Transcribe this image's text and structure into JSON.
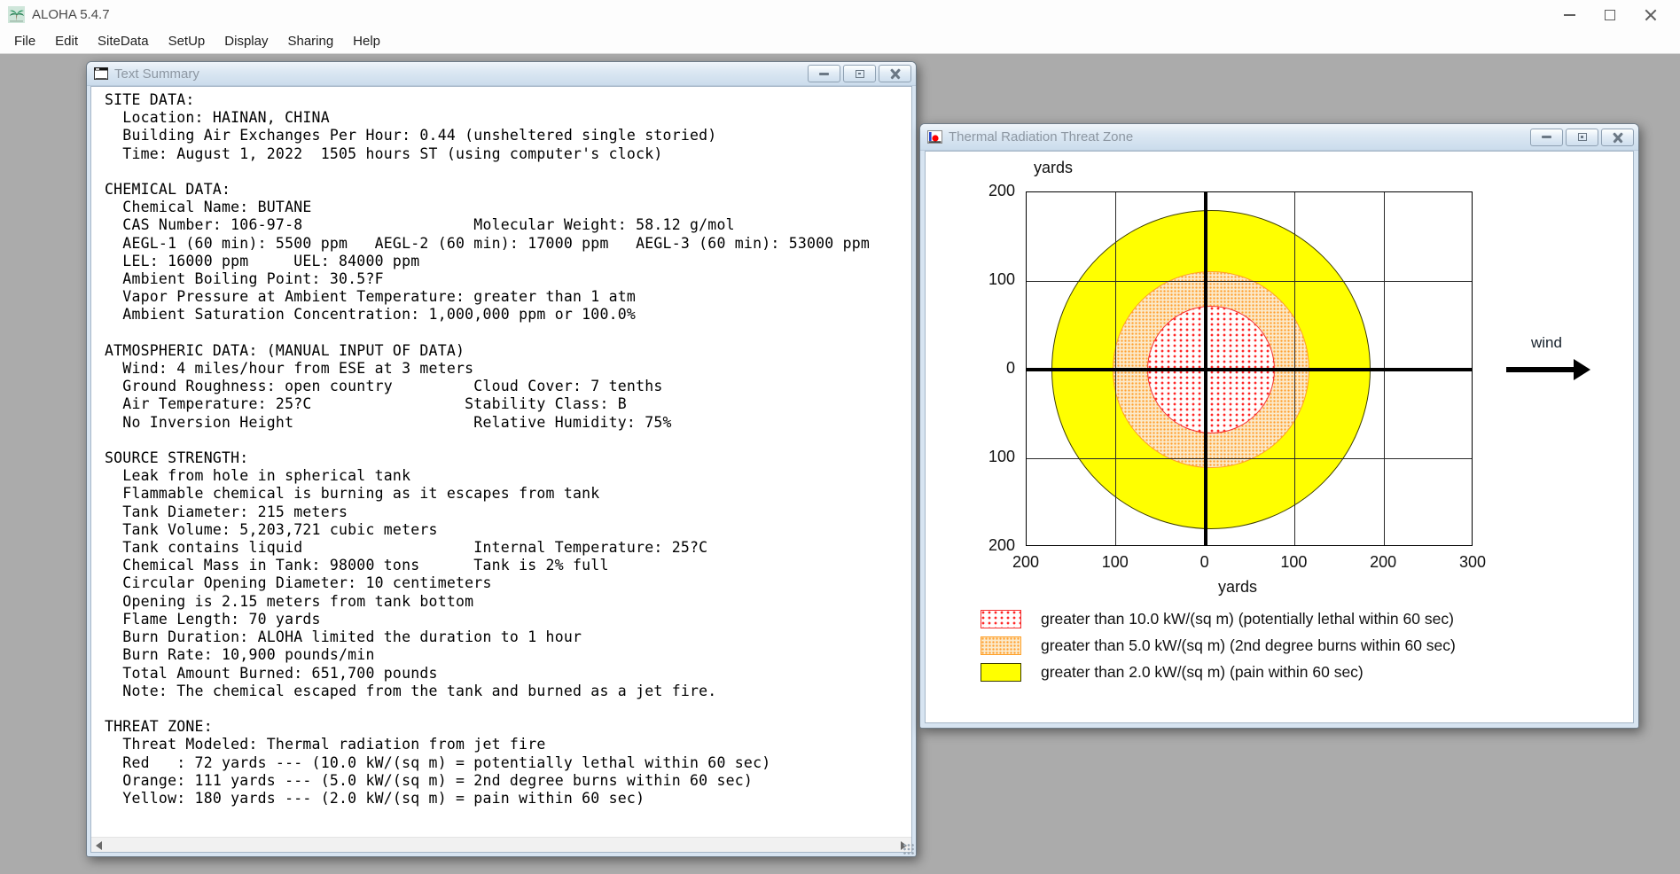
{
  "app": {
    "title": "ALOHA 5.4.7",
    "menu_items": [
      "File",
      "Edit",
      "SiteData",
      "SetUp",
      "Display",
      "Sharing",
      "Help"
    ]
  },
  "text_summary_window": {
    "title": "Text Summary",
    "lines": [
      "SITE DATA:",
      "  Location: HAINAN, CHINA",
      "  Building Air Exchanges Per Hour: 0.44 (unsheltered single storied)",
      "  Time: August 1, 2022  1505 hours ST (using computer's clock)",
      "",
      "CHEMICAL DATA:",
      "  Chemical Name: BUTANE",
      "  CAS Number: 106-97-8                   Molecular Weight: 58.12 g/mol",
      "  AEGL-1 (60 min): 5500 ppm   AEGL-2 (60 min): 17000 ppm   AEGL-3 (60 min): 53000 ppm",
      "  LEL: 16000 ppm     UEL: 84000 ppm",
      "  Ambient Boiling Point: 30.5?F",
      "  Vapor Pressure at Ambient Temperature: greater than 1 atm",
      "  Ambient Saturation Concentration: 1,000,000 ppm or 100.0%",
      "",
      "ATMOSPHERIC DATA: (MANUAL INPUT OF DATA)",
      "  Wind: 4 miles/hour from ESE at 3 meters",
      "  Ground Roughness: open country         Cloud Cover: 7 tenths",
      "  Air Temperature: 25?C                 Stability Class: B",
      "  No Inversion Height                    Relative Humidity: 75%",
      "",
      "SOURCE STRENGTH:",
      "  Leak from hole in spherical tank",
      "  Flammable chemical is burning as it escapes from tank",
      "  Tank Diameter: 215 meters",
      "  Tank Volume: 5,203,721 cubic meters",
      "  Tank contains liquid                   Internal Temperature: 25?C",
      "  Chemical Mass in Tank: 98000 tons      Tank is 2% full",
      "  Circular Opening Diameter: 10 centimeters",
      "  Opening is 2.15 meters from tank bottom",
      "  Flame Length: 70 yards",
      "  Burn Duration: ALOHA limited the duration to 1 hour",
      "  Burn Rate: 10,900 pounds/min",
      "  Total Amount Burned: 651,700 pounds",
      "  Note: The chemical escaped from the tank and burned as a jet fire.",
      "",
      "THREAT ZONE:",
      "  Threat Modeled: Thermal radiation from jet fire",
      "  Red   : 72 yards --- (10.0 kW/(sq m) = potentially lethal within 60 sec)",
      "  Orange: 111 yards --- (5.0 kW/(sq m) = 2nd degree burns within 60 sec)",
      "  Yellow: 180 yards --- (2.0 kW/(sq m) = pain within 60 sec)"
    ]
  },
  "threat_zone_window": {
    "title": "Thermal Radiation Threat Zone",
    "wind_label": "wind"
  },
  "chart_data": {
    "type": "area",
    "title": "Thermal Radiation Threat Zone",
    "xlabel": "yards",
    "ylabel": "yards",
    "xlim": [
      -200,
      300
    ],
    "ylim": [
      -200,
      200
    ],
    "grid": true,
    "x_ticks": [
      {
        "value": -200,
        "label": "200"
      },
      {
        "value": -100,
        "label": "100"
      },
      {
        "value": 0,
        "label": "0"
      },
      {
        "value": 100,
        "label": "100"
      },
      {
        "value": 200,
        "label": "200"
      },
      {
        "value": 300,
        "label": "300"
      }
    ],
    "y_ticks": [
      {
        "value": 200,
        "label": "200"
      },
      {
        "value": 100,
        "label": "100"
      },
      {
        "value": 0,
        "label": "0"
      },
      {
        "value": -100,
        "label": "100"
      },
      {
        "value": -200,
        "label": "200"
      }
    ],
    "zones": [
      {
        "name": "yellow",
        "style": "yellow-solid",
        "threshold_kw_sqm": 2.0,
        "radius_yards": 180,
        "center": [
          6,
          0
        ],
        "color": "#FFFF00"
      },
      {
        "name": "orange",
        "style": "orange-dotted",
        "threshold_kw_sqm": 5.0,
        "radius_yards": 111,
        "center": [
          6,
          0
        ],
        "color": "#FFA500"
      },
      {
        "name": "red",
        "style": "red-dotted",
        "threshold_kw_sqm": 10.0,
        "radius_yards": 72,
        "center": [
          6,
          0
        ],
        "color": "#FF0000"
      }
    ],
    "legend": [
      {
        "swatch": "red-dotted",
        "label": "greater than 10.0 kW/(sq m) (potentially lethal within 60 sec)"
      },
      {
        "swatch": "orange-dotted",
        "label": "greater than 5.0 kW/(sq m) (2nd degree burns within 60 sec)"
      },
      {
        "swatch": "yellow-solid",
        "label": "greater than 2.0 kW/(sq m) (pain within 60 sec)"
      }
    ],
    "annotations": [
      {
        "text": "wind",
        "type": "arrow-right",
        "position": "right-of-plot"
      }
    ],
    "legend_position": "bottom-left"
  }
}
